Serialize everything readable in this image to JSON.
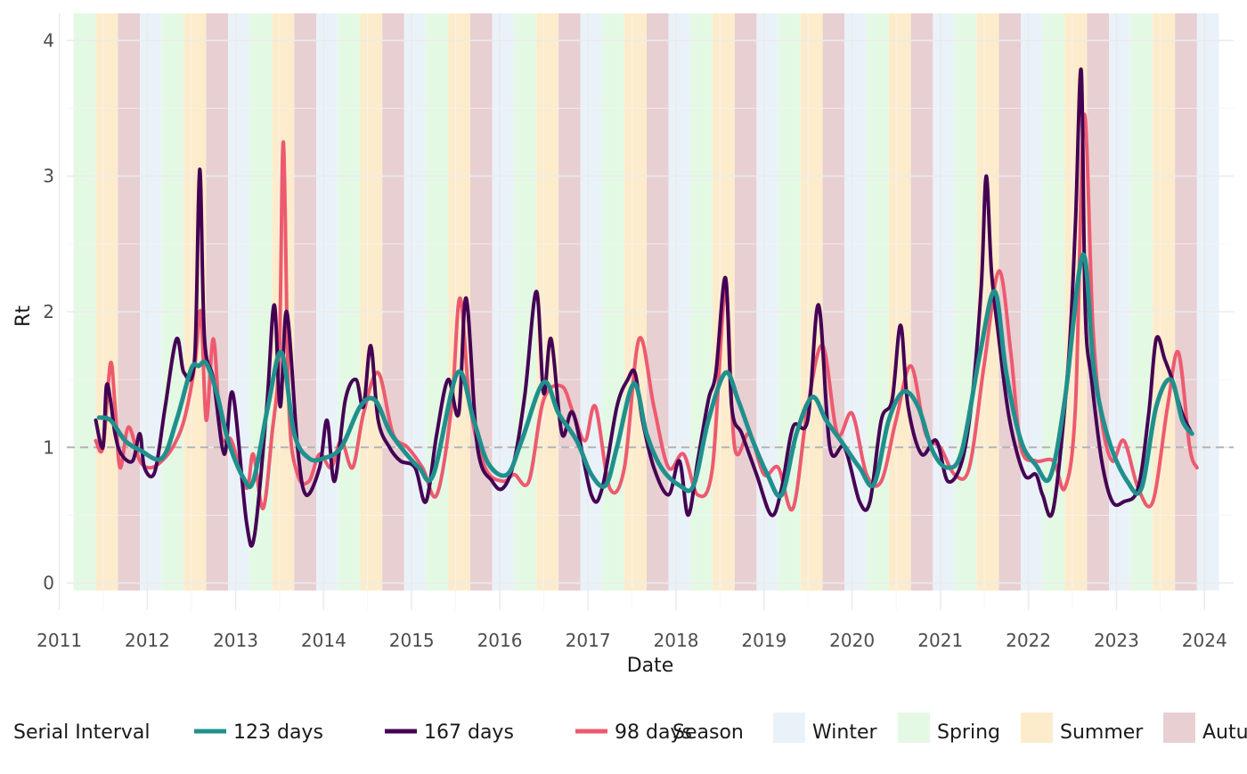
{
  "chart_data": {
    "type": "line",
    "title": "",
    "xlabel": "Date",
    "ylabel": "Rt",
    "xlim": [
      "2011-02-01",
      "2024-05-01"
    ],
    "ylim": [
      -0.2,
      4.2
    ],
    "x_ticks": [
      "2011",
      "2012",
      "2013",
      "2014",
      "2015",
      "2016",
      "2017",
      "2018",
      "2019",
      "2020",
      "2021",
      "2022",
      "2023",
      "2024"
    ],
    "y_ticks": [
      0,
      1,
      2,
      3,
      4
    ],
    "y_tick_labels": [
      "0",
      "1",
      "2",
      "3",
      "4"
    ],
    "reference_line": {
      "y": 1,
      "style": "dashed",
      "color": "#b3b3b3"
    },
    "grid": true,
    "legend_position": "bottom",
    "seasons": {
      "legend_title": "Season",
      "items": [
        {
          "name": "Winter",
          "color": "#eaf2f9"
        },
        {
          "name": "Spring",
          "color": "#e4f9e4"
        },
        {
          "name": "Summer",
          "color": "#fdeccc"
        },
        {
          "name": "Autumn",
          "color": "#e8cfd2"
        }
      ],
      "start_date": "2011-03-01",
      "end_date": "2024-03-01",
      "start_season": "Spring"
    },
    "serial_interval_legend_title": "Serial Interval",
    "series": [
      {
        "name": "123 days",
        "color": "#21908d",
        "x": [
          "2011-06-15",
          "2011-08-01",
          "2011-10-01",
          "2011-12-01",
          "2012-03-01",
          "2012-05-01",
          "2012-07-01",
          "2012-08-01",
          "2012-09-01",
          "2012-10-15",
          "2012-12-01",
          "2013-02-01",
          "2013-03-15",
          "2013-05-15",
          "2013-07-10",
          "2013-09-01",
          "2013-11-01",
          "2014-01-01",
          "2014-03-15",
          "2014-06-01",
          "2014-08-01",
          "2014-10-01",
          "2014-12-01",
          "2015-02-01",
          "2015-04-01",
          "2015-07-10",
          "2015-09-15",
          "2015-11-15",
          "2016-02-01",
          "2016-04-01",
          "2016-07-01",
          "2016-09-01",
          "2016-11-15",
          "2017-01-15",
          "2017-03-15",
          "2017-05-01",
          "2017-07-10",
          "2017-09-01",
          "2017-11-01",
          "2018-01-15",
          "2018-03-15",
          "2018-05-15",
          "2018-07-25",
          "2018-09-15",
          "2018-11-15",
          "2019-01-15",
          "2019-03-15",
          "2019-05-15",
          "2019-07-20",
          "2019-09-15",
          "2019-11-15",
          "2020-02-01",
          "2020-04-01",
          "2020-06-01",
          "2020-08-01",
          "2020-10-01",
          "2020-12-01",
          "2021-02-01",
          "2021-04-01",
          "2021-06-15",
          "2021-08-15",
          "2021-10-01",
          "2021-12-01",
          "2022-02-01",
          "2022-04-01",
          "2022-06-01",
          "2022-08-15",
          "2022-10-01",
          "2022-12-01",
          "2023-02-15",
          "2023-04-15",
          "2023-06-15",
          "2023-08-15",
          "2023-10-01",
          "2023-11-10"
        ],
        "values": [
          1.22,
          1.2,
          1.05,
          0.98,
          0.92,
          1.2,
          1.58,
          1.6,
          1.62,
          1.4,
          1.05,
          0.78,
          0.75,
          1.3,
          1.7,
          1.1,
          0.92,
          0.92,
          1.0,
          1.3,
          1.35,
          1.12,
          0.97,
          0.85,
          0.8,
          1.55,
          1.2,
          0.88,
          0.8,
          1.05,
          1.48,
          1.25,
          1.05,
          0.8,
          0.72,
          1.0,
          1.47,
          1.1,
          0.85,
          0.72,
          0.72,
          1.2,
          1.55,
          1.35,
          1.05,
          0.8,
          0.65,
          1.1,
          1.37,
          1.2,
          1.05,
          0.85,
          0.73,
          1.2,
          1.41,
          1.3,
          0.97,
          0.85,
          0.98,
          1.7,
          2.15,
          1.55,
          1.05,
          0.87,
          0.78,
          1.35,
          2.42,
          1.55,
          1.05,
          0.75,
          0.7,
          1.3,
          1.5,
          1.2,
          1.1
        ]
      },
      {
        "name": "167 days",
        "color": "#440154",
        "x": [
          "2011-06-01",
          "2011-07-01",
          "2011-07-15",
          "2011-08-01",
          "2011-08-20",
          "2011-09-15",
          "2011-11-01",
          "2011-12-01",
          "2011-12-20",
          "2012-02-01",
          "2012-03-15",
          "2012-05-01",
          "2012-06-01",
          "2012-07-15",
          "2012-08-05",
          "2012-08-25",
          "2012-10-01",
          "2012-11-15",
          "2012-12-20",
          "2013-02-15",
          "2013-03-20",
          "2013-05-10",
          "2013-06-10",
          "2013-07-05",
          "2013-08-01",
          "2013-09-15",
          "2013-10-20",
          "2013-12-15",
          "2014-01-15",
          "2014-02-15",
          "2014-04-01",
          "2014-05-15",
          "2014-06-15",
          "2014-07-15",
          "2014-08-15",
          "2014-10-01",
          "2014-11-15",
          "2015-01-15",
          "2015-03-01",
          "2015-04-15",
          "2015-06-01",
          "2015-07-15",
          "2015-08-15",
          "2015-10-01",
          "2015-12-01",
          "2016-01-15",
          "2016-03-01",
          "2016-04-15",
          "2016-06-01",
          "2016-07-01",
          "2016-08-01",
          "2016-09-15",
          "2016-11-01",
          "2017-01-15",
          "2017-03-01",
          "2017-05-01",
          "2017-06-15",
          "2017-07-15",
          "2017-08-15",
          "2017-10-01",
          "2017-12-01",
          "2018-01-15",
          "2018-02-20",
          "2018-04-01",
          "2018-05-15",
          "2018-06-15",
          "2018-07-25",
          "2018-08-20",
          "2018-10-01",
          "2018-12-01",
          "2019-02-01",
          "2019-03-15",
          "2019-05-01",
          "2019-07-01",
          "2019-08-15",
          "2019-10-01",
          "2019-12-01",
          "2020-02-01",
          "2020-03-15",
          "2020-05-01",
          "2020-06-15",
          "2020-07-20",
          "2020-08-20",
          "2020-10-15",
          "2020-12-15",
          "2021-02-01",
          "2021-04-01",
          "2021-05-15",
          "2021-06-20",
          "2021-07-10",
          "2021-08-01",
          "2021-09-01",
          "2021-10-15",
          "2021-12-15",
          "2022-02-01",
          "2022-03-01",
          "2022-04-15",
          "2022-06-15",
          "2022-07-15",
          "2022-08-08",
          "2022-08-25",
          "2022-09-20",
          "2022-11-01",
          "2022-12-15",
          "2023-02-01",
          "2023-04-01",
          "2023-05-15",
          "2023-06-15",
          "2023-07-20",
          "2023-08-20",
          "2023-10-01",
          "2023-11-10"
        ],
        "values": [
          1.2,
          1.0,
          1.45,
          1.35,
          1.1,
          0.95,
          0.9,
          1.1,
          0.85,
          0.82,
          1.3,
          1.8,
          1.55,
          1.65,
          3.05,
          1.8,
          1.5,
          0.95,
          1.4,
          0.45,
          0.35,
          1.3,
          2.05,
          1.3,
          2.0,
          1.0,
          0.65,
          0.85,
          1.2,
          0.75,
          1.35,
          1.5,
          1.3,
          1.75,
          1.2,
          1.0,
          0.9,
          0.85,
          0.6,
          1.1,
          1.5,
          1.25,
          2.1,
          1.0,
          0.75,
          0.7,
          0.9,
          1.4,
          2.15,
          1.4,
          1.8,
          1.1,
          1.25,
          0.65,
          0.7,
          1.3,
          1.5,
          1.55,
          1.2,
          0.85,
          0.65,
          0.9,
          0.5,
          0.9,
          1.35,
          1.55,
          2.25,
          1.3,
          1.1,
          0.8,
          0.5,
          0.7,
          1.15,
          1.2,
          2.05,
          1.0,
          1.0,
          0.6,
          0.6,
          1.2,
          1.35,
          1.9,
          1.3,
          0.95,
          1.05,
          0.75,
          0.9,
          1.4,
          2.2,
          3.0,
          2.3,
          1.8,
          1.2,
          0.8,
          0.8,
          0.65,
          0.55,
          1.6,
          2.65,
          3.78,
          2.0,
          1.5,
          0.9,
          0.6,
          0.6,
          0.7,
          1.25,
          1.8,
          1.65,
          1.5,
          1.25,
          1.1
        ]
      },
      {
        "name": "98 days",
        "color": "#ed5a6f",
        "x": [
          "2011-06-01",
          "2011-07-01",
          "2011-08-01",
          "2011-08-20",
          "2011-09-10",
          "2011-10-15",
          "2011-12-01",
          "2012-01-15",
          "2012-03-01",
          "2012-04-15",
          "2012-06-01",
          "2012-07-15",
          "2012-08-10",
          "2012-09-01",
          "2012-10-01",
          "2012-11-01",
          "2012-12-15",
          "2013-02-15",
          "2013-03-15",
          "2013-04-25",
          "2013-06-01",
          "2013-07-01",
          "2013-07-18",
          "2013-08-10",
          "2013-09-15",
          "2013-11-01",
          "2013-12-15",
          "2014-02-01",
          "2014-03-15",
          "2014-05-01",
          "2014-06-15",
          "2014-08-15",
          "2014-10-15",
          "2014-12-15",
          "2015-02-15",
          "2015-04-15",
          "2015-06-15",
          "2015-07-20",
          "2015-09-01",
          "2015-11-01",
          "2016-01-15",
          "2016-03-01",
          "2016-05-01",
          "2016-07-01",
          "2016-09-15",
          "2016-11-01",
          "2016-12-20",
          "2017-02-01",
          "2017-04-01",
          "2017-06-01",
          "2017-08-01",
          "2017-10-01",
          "2017-12-01",
          "2018-02-01",
          "2018-04-01",
          "2018-06-01",
          "2018-07-25",
          "2018-09-01",
          "2018-11-01",
          "2019-01-01",
          "2019-03-01",
          "2019-05-01",
          "2019-07-01",
          "2019-09-01",
          "2019-11-01",
          "2020-01-01",
          "2020-03-01",
          "2020-05-01",
          "2020-07-01",
          "2020-09-01",
          "2020-11-01",
          "2021-01-01",
          "2021-03-01",
          "2021-05-01",
          "2021-07-01",
          "2021-09-01",
          "2021-10-20",
          "2021-12-01",
          "2022-02-01",
          "2022-04-15",
          "2022-06-01",
          "2022-07-15",
          "2022-08-20",
          "2022-09-25",
          "2022-11-01",
          "2022-12-15",
          "2023-02-01",
          "2023-04-01",
          "2023-06-01",
          "2023-08-01",
          "2023-09-15",
          "2023-11-01",
          "2023-12-01"
        ],
        "values": [
          1.05,
          1.0,
          1.62,
          1.3,
          0.85,
          1.15,
          0.9,
          0.85,
          0.9,
          1.0,
          1.2,
          1.6,
          2.0,
          1.2,
          1.8,
          1.1,
          1.05,
          0.7,
          0.95,
          0.55,
          1.1,
          1.7,
          3.25,
          1.3,
          0.8,
          0.75,
          0.95,
          0.85,
          1.05,
          0.85,
          1.25,
          1.55,
          1.1,
          1.0,
          0.85,
          0.65,
          1.3,
          2.1,
          1.3,
          0.85,
          0.75,
          0.8,
          0.75,
          1.35,
          1.45,
          1.25,
          1.05,
          1.3,
          0.7,
          0.85,
          1.8,
          1.3,
          0.85,
          0.95,
          0.65,
          0.85,
          2.15,
          1.0,
          1.1,
          0.8,
          0.85,
          0.55,
          1.3,
          1.75,
          1.1,
          1.25,
          0.8,
          0.75,
          1.2,
          1.6,
          1.1,
          1.0,
          0.8,
          0.85,
          1.6,
          2.3,
          1.7,
          1.0,
          0.9,
          0.9,
          0.7,
          1.3,
          3.45,
          1.9,
          1.2,
          0.9,
          1.05,
          0.7,
          0.6,
          1.3,
          1.7,
          1.0,
          0.85
        ]
      }
    ]
  }
}
